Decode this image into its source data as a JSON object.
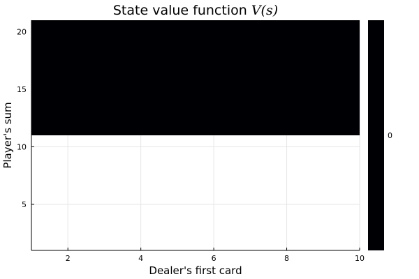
{
  "chart_data": {
    "type": "heatmap",
    "title": {
      "prefix": "State value function ",
      "math": "V(s)"
    },
    "xlabel": "Dealer's first card",
    "ylabel": "Player's sum",
    "xlim": [
      1,
      10
    ],
    "ylim": [
      1,
      21
    ],
    "xticks": [
      2,
      4,
      6,
      8,
      10
    ],
    "yticks": [
      5,
      10,
      15,
      20
    ],
    "grid": true,
    "cells": {
      "x_range": [
        1,
        10
      ],
      "y_range": [
        11,
        21
      ],
      "value": 0
    },
    "colorbar": {
      "ticks": [
        0
      ],
      "colors": {
        "low": "#000004",
        "high": "#000004"
      }
    },
    "colors": {
      "cell": "#000004",
      "grid": "#e6e6e6",
      "axis": "#000000",
      "background": "#ffffff"
    }
  }
}
